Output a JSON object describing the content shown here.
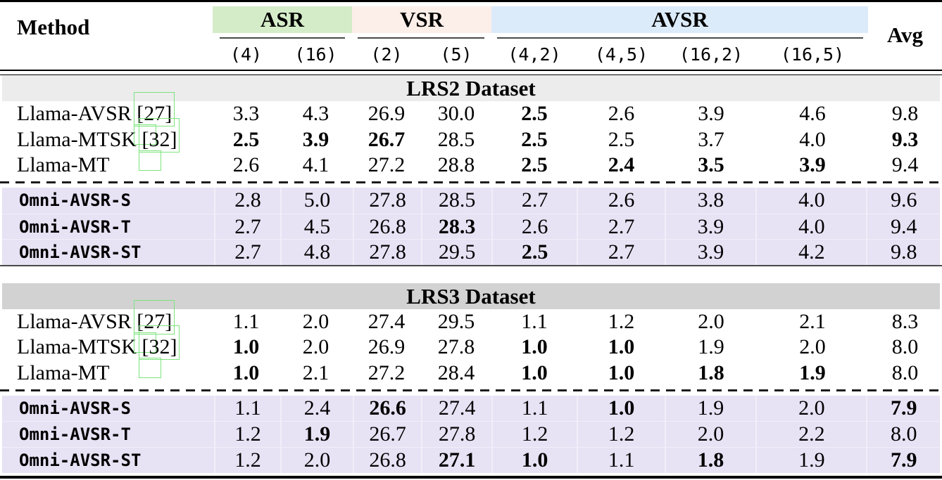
{
  "table": {
    "header": {
      "method_label": "Method",
      "avg_label": "Avg",
      "groups": [
        {
          "label": "ASR",
          "color": "#d5ecc9",
          "sub_columns": [
            "(4)",
            "(16)"
          ]
        },
        {
          "label": "VSR",
          "color": "#fcefe9",
          "sub_columns": [
            "(2)",
            "(5)"
          ]
        },
        {
          "label": "AVSR",
          "color": "#dcebfa",
          "sub_columns": [
            "(4,2)",
            "(4,5)",
            "(16,2)",
            "(16,5)"
          ]
        }
      ],
      "sub_columns_flat": [
        "(4)",
        "(16)",
        "(2)",
        "(5)",
        "(4,2)",
        "(4,5)",
        "(16,2)",
        "(16,5)"
      ]
    },
    "sections": [
      {
        "title": "LRS2 Dataset",
        "band_color": "#ececec",
        "baseline_rows": [
          {
            "method": "Llama-AVSR",
            "cite": "[27]",
            "values": [
              "3.3",
              "4.3",
              "26.9",
              "30.0",
              "2.5",
              "2.6",
              "3.9",
              "4.6",
              "9.8"
            ],
            "bold": [
              4
            ]
          },
          {
            "method": "Llama-MTSK",
            "cite": "[32]",
            "values": [
              "2.5",
              "3.9",
              "26.7",
              "28.5",
              "2.5",
              "2.5",
              "3.7",
              "4.0",
              "9.3"
            ],
            "bold": [
              0,
              1,
              2,
              4,
              8
            ]
          },
          {
            "method": "Llama-MT",
            "cite": "",
            "values": [
              "2.6",
              "4.1",
              "27.2",
              "28.8",
              "2.5",
              "2.4",
              "3.5",
              "3.9",
              "9.4"
            ],
            "bold": [
              4,
              5,
              6,
              7
            ]
          }
        ],
        "omni_rows": [
          {
            "method": "Omni-AVSR-S",
            "cite": "",
            "values": [
              "2.8",
              "5.0",
              "27.8",
              "28.5",
              "2.7",
              "2.6",
              "3.8",
              "4.0",
              "9.6"
            ],
            "bold": []
          },
          {
            "method": "Omni-AVSR-T",
            "cite": "",
            "values": [
              "2.7",
              "4.5",
              "26.8",
              "28.3",
              "2.6",
              "2.7",
              "3.9",
              "4.0",
              "9.4"
            ],
            "bold": [
              3
            ]
          },
          {
            "method": "Omni-AVSR-ST",
            "cite": "",
            "values": [
              "2.7",
              "4.8",
              "27.8",
              "29.5",
              "2.5",
              "2.7",
              "3.9",
              "4.2",
              "9.8"
            ],
            "bold": [
              4
            ]
          }
        ]
      },
      {
        "title": "LRS3 Dataset",
        "band_color": "#d2d2d2",
        "baseline_rows": [
          {
            "method": "Llama-AVSR",
            "cite": "[27]",
            "values": [
              "1.1",
              "2.0",
              "27.4",
              "29.5",
              "1.1",
              "1.2",
              "2.0",
              "2.1",
              "8.3"
            ],
            "bold": []
          },
          {
            "method": "Llama-MTSK",
            "cite": "[32]",
            "values": [
              "1.0",
              "2.0",
              "26.9",
              "27.8",
              "1.0",
              "1.0",
              "1.9",
              "2.0",
              "8.0"
            ],
            "bold": [
              0,
              4,
              5
            ]
          },
          {
            "method": "Llama-MT",
            "cite": "",
            "values": [
              "1.0",
              "2.1",
              "27.2",
              "28.4",
              "1.0",
              "1.0",
              "1.8",
              "1.9",
              "8.0"
            ],
            "bold": [
              0,
              4,
              5,
              6,
              7
            ]
          }
        ],
        "omni_rows": [
          {
            "method": "Omni-AVSR-S",
            "cite": "",
            "values": [
              "1.1",
              "2.4",
              "26.6",
              "27.4",
              "1.1",
              "1.0",
              "1.9",
              "2.0",
              "7.9"
            ],
            "bold": [
              2,
              5,
              8
            ]
          },
          {
            "method": "Omni-AVSR-T",
            "cite": "",
            "values": [
              "1.2",
              "1.9",
              "26.7",
              "27.8",
              "1.2",
              "1.2",
              "2.0",
              "2.2",
              "8.0"
            ],
            "bold": [
              1
            ]
          },
          {
            "method": "Omni-AVSR-ST",
            "cite": "",
            "values": [
              "1.2",
              "2.0",
              "26.8",
              "27.1",
              "1.0",
              "1.1",
              "1.8",
              "1.9",
              "7.9"
            ],
            "bold": [
              3,
              4,
              6,
              8
            ]
          }
        ]
      }
    ],
    "colors": {
      "asr_header_bg": "#d5ecc9",
      "vsr_header_bg": "#fcefe9",
      "avsr_header_bg": "#dcebfa",
      "lrs2_band_bg": "#ececec",
      "lrs3_band_bg": "#d2d2d2",
      "omni_row_bg": "#e7e2f4",
      "citation_box_border": "#7ee37d"
    }
  }
}
